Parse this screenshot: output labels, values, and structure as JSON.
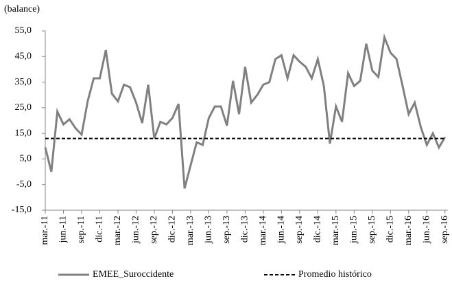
{
  "chart_data": {
    "type": "line",
    "y_label": "(balance)",
    "categories": [
      "mar.-11",
      null,
      null,
      "jun.-11",
      null,
      null,
      "sep.-11",
      null,
      null,
      "dic.-11",
      null,
      null,
      "mar.-12",
      null,
      null,
      "jun.-12",
      null,
      null,
      "sep.-12",
      null,
      null,
      "dic.-12",
      null,
      null,
      "mar.-13",
      null,
      null,
      "jun.-13",
      null,
      null,
      "sep.-13",
      null,
      null,
      "dic.-13",
      null,
      null,
      "mar.-14",
      null,
      null,
      "jun.-14",
      null,
      null,
      "sep.-14",
      null,
      null,
      "dic.-14",
      null,
      null,
      "mar.-15",
      null,
      null,
      "jun.-15",
      null,
      null,
      "sep.-15",
      null,
      null,
      "dic.-15",
      null,
      null,
      "mar.-16",
      null,
      null,
      "jun.-16",
      null,
      null,
      "sep.-16"
    ],
    "series": [
      {
        "name": "EMEE_Suroccidente",
        "color": "#808080",
        "style": "solid",
        "values": [
          9.5,
          0,
          23.5,
          18.5,
          20.5,
          17,
          14.5,
          27.5,
          36.5,
          36.5,
          47.5,
          30.5,
          27.5,
          34,
          33,
          27,
          19,
          34,
          13,
          19.5,
          18.5,
          21,
          26.5,
          -6.5,
          2.5,
          11.5,
          10.5,
          21,
          25.5,
          25.5,
          18,
          35.5,
          22.5,
          41,
          27,
          30,
          34,
          35,
          44,
          45.5,
          36.5,
          45.5,
          43,
          41,
          36.5,
          44,
          33.5,
          11,
          25.5,
          19.5,
          38.5,
          33.5,
          35.5,
          50,
          39.5,
          37,
          52.5,
          46.5,
          44,
          33.5,
          22.5,
          27,
          17.5,
          10.5,
          15,
          9.5,
          13.5
        ]
      },
      {
        "name": "Promedio histórico",
        "color": "#000000",
        "style": "dashed",
        "values": [
          13,
          13,
          13,
          13,
          13,
          13,
          13,
          13,
          13,
          13,
          13,
          13,
          13,
          13,
          13,
          13,
          13,
          13,
          13,
          13,
          13,
          13,
          13,
          13,
          13,
          13,
          13,
          13,
          13,
          13,
          13,
          13,
          13,
          13,
          13,
          13,
          13,
          13,
          13,
          13,
          13,
          13,
          13,
          13,
          13,
          13,
          13,
          13,
          13,
          13,
          13,
          13,
          13,
          13,
          13,
          13,
          13,
          13,
          13,
          13,
          13,
          13,
          13,
          13,
          13,
          13,
          13
        ]
      }
    ],
    "ylim": [
      -15,
      55
    ],
    "yticks": [
      {
        "value": -15,
        "label": "-15,0"
      },
      {
        "value": -5,
        "label": "-5,0"
      },
      {
        "value": 5,
        "label": "5,0"
      },
      {
        "value": 15,
        "label": "15,0"
      },
      {
        "value": 25,
        "label": "25,0"
      },
      {
        "value": 35,
        "label": "35,0"
      },
      {
        "value": 45,
        "label": "45,0"
      },
      {
        "value": 55,
        "label": "55,0"
      }
    ],
    "legend": "bottom"
  }
}
